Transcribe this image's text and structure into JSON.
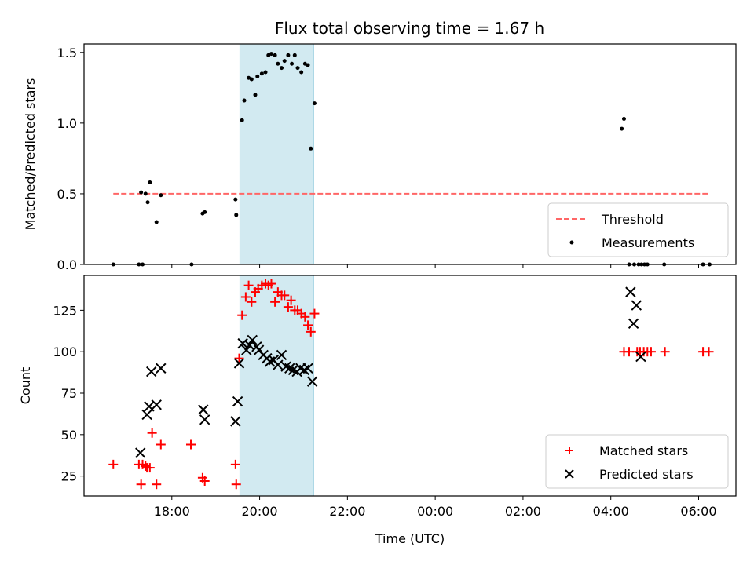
{
  "title": "Flux total observing time = 1.67 h",
  "colors": {
    "threshold": "#ff6666",
    "matched": "#ff0000",
    "predicted": "#000000",
    "measurement": "#000000",
    "shade": "#add8e6"
  },
  "chart_data": [
    {
      "type": "scatter",
      "ylabel": "Matched/Predicted stars",
      "ylim": [
        0,
        1.56
      ],
      "xlim_hours": [
        16.0,
        30.85
      ],
      "yticks": [
        "0.0",
        "0.5",
        "1.0",
        "1.5"
      ],
      "ytick_values": [
        0,
        0.5,
        1.0,
        1.5
      ],
      "shaded_region": {
        "start": "19:33",
        "end": "21:14"
      },
      "legend": {
        "position": "lower right",
        "entries": [
          "Threshold",
          "Measurements"
        ]
      },
      "threshold": {
        "name": "Threshold",
        "value": 0.5,
        "x_start": "16:40",
        "x_end": "06:15"
      },
      "series": [
        {
          "name": "Measurements",
          "times": [
            "16:40",
            "17:15",
            "17:20",
            "17:18",
            "17:24",
            "17:27",
            "17:30",
            "17:39",
            "17:45",
            "18:27",
            "18:42",
            "18:45",
            "19:27",
            "19:28",
            "19:36",
            "19:39",
            "19:45",
            "19:49",
            "19:54",
            "19:57",
            "20:03",
            "20:08",
            "20:12",
            "20:16",
            "20:21",
            "20:25",
            "20:30",
            "20:34",
            "20:39",
            "20:44",
            "20:48",
            "20:52",
            "20:57",
            "21:02",
            "21:06",
            "21:10",
            "21:15",
            "04:15",
            "04:18",
            "04:25",
            "04:32",
            "04:38",
            "04:42",
            "04:46",
            "04:50",
            "05:13",
            "06:06",
            "06:15"
          ],
          "values": [
            0.0,
            0.0,
            0.0,
            0.51,
            0.5,
            0.44,
            0.58,
            0.3,
            0.49,
            0.0,
            0.36,
            0.37,
            0.46,
            0.35,
            1.02,
            1.16,
            1.32,
            1.31,
            1.2,
            1.33,
            1.35,
            1.36,
            1.48,
            1.49,
            1.48,
            1.42,
            1.39,
            1.44,
            1.48,
            1.42,
            1.48,
            1.39,
            1.36,
            1.42,
            1.41,
            0.82,
            1.14,
            0.96,
            1.03,
            0.0,
            0.0,
            0.0,
            0.0,
            0.0,
            0.0,
            0.0,
            0.0,
            0.0
          ]
        }
      ]
    },
    {
      "type": "scatter",
      "ylabel": "Count",
      "xlabel": "Time (UTC)",
      "ylim": [
        13,
        146
      ],
      "xlim_hours": [
        16.0,
        30.85
      ],
      "yticks": [
        "25",
        "50",
        "75",
        "100",
        "125"
      ],
      "ytick_values": [
        25,
        50,
        75,
        100,
        125
      ],
      "xticks": [
        "18:00",
        "20:00",
        "22:00",
        "00:00",
        "02:00",
        "04:00",
        "06:00"
      ],
      "xtick_hours": [
        18,
        20,
        22,
        24,
        26,
        28,
        30
      ],
      "shaded_region": {
        "start": "19:33",
        "end": "21:14"
      },
      "legend": {
        "position": "lower right",
        "entries": [
          "Matched stars",
          "Predicted stars"
        ]
      },
      "series": [
        {
          "name": "Matched stars",
          "marker": "+",
          "times": [
            "16:40",
            "17:15",
            "17:18",
            "17:20",
            "17:24",
            "17:26",
            "17:30",
            "17:33",
            "17:39",
            "17:45",
            "18:26",
            "18:42",
            "18:45",
            "19:27",
            "19:28",
            "19:32",
            "19:36",
            "19:41",
            "19:45",
            "19:49",
            "19:54",
            "19:58",
            "20:03",
            "20:08",
            "20:12",
            "20:16",
            "20:21",
            "20:25",
            "20:30",
            "20:34",
            "20:39",
            "20:43",
            "20:48",
            "20:52",
            "20:57",
            "21:02",
            "21:06",
            "21:10",
            "21:15",
            "04:18",
            "04:25",
            "04:36",
            "04:40",
            "04:45",
            "04:50",
            "04:55",
            "05:14",
            "06:06",
            "06:14"
          ],
          "values": [
            32,
            32,
            20,
            32,
            31,
            30,
            30,
            51,
            20,
            44,
            44,
            24,
            22,
            32,
            20,
            96,
            122,
            133,
            140,
            130,
            136,
            138,
            140,
            141,
            140,
            141,
            130,
            136,
            134,
            134,
            127,
            131,
            125,
            125,
            123,
            121,
            116,
            112,
            123,
            100,
            100,
            100,
            100,
            100,
            100,
            100,
            100,
            100,
            100
          ]
        },
        {
          "name": "Predicted stars",
          "marker": "x",
          "times": [
            "17:17",
            "17:26",
            "17:29",
            "17:32",
            "17:39",
            "17:45",
            "18:43",
            "18:45",
            "19:27",
            "19:30",
            "19:32",
            "19:37",
            "19:42",
            "19:46",
            "19:50",
            "19:56",
            "19:59",
            "20:05",
            "20:10",
            "20:14",
            "20:19",
            "20:25",
            "20:30",
            "20:36",
            "20:41",
            "20:46",
            "20:51",
            "20:56",
            "21:01",
            "21:06",
            "21:12",
            "04:27",
            "04:31",
            "04:35",
            "04:41"
          ],
          "values": [
            39,
            62,
            67,
            88,
            68,
            90,
            65,
            59,
            58,
            70,
            93,
            105,
            101,
            104,
            107,
            103,
            101,
            98,
            96,
            94,
            95,
            92,
            98,
            91,
            90,
            89,
            88,
            90,
            89,
            90,
            82,
            136,
            117,
            128,
            97
          ]
        }
      ]
    }
  ]
}
